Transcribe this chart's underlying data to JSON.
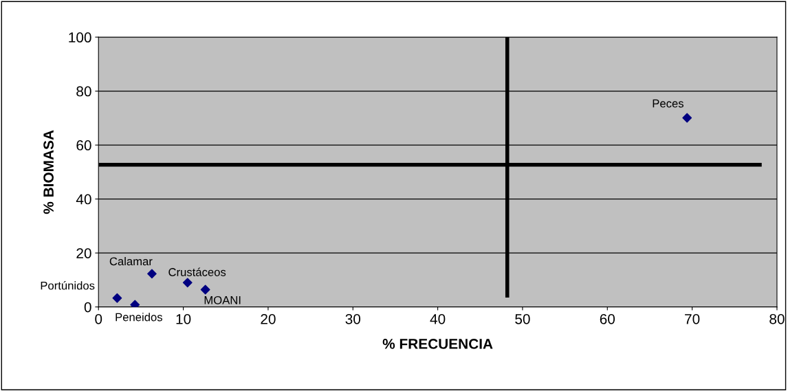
{
  "chart_data": {
    "type": "scatter",
    "xlabel": "% FRECUENCIA",
    "ylabel": "% BIOMASA",
    "x": [
      69.4,
      6.3,
      10.5,
      12.6,
      2.2,
      4.3
    ],
    "series": [
      {
        "color": "#000080",
        "values": [
          70.1,
          12.3,
          9.0,
          6.4,
          3.3,
          0.8
        ],
        "marker": "diamond"
      },
      {
        "type": "line",
        "color": "#000000",
        "x": [
          48.2,
          48.2
        ],
        "values": [
          3.5,
          100
        ]
      },
      {
        "type": "line",
        "color": "#000000",
        "x": [
          0,
          78.2
        ],
        "values": [
          52.7,
          52.7
        ]
      }
    ],
    "annotations": [
      {
        "text": "Peces",
        "x": 69.4,
        "y": 70.1
      },
      {
        "text": "Calamar",
        "x": 6.3,
        "y": 12.3
      },
      {
        "text": "Crustáceos",
        "x": 10.5,
        "y": 9.0
      },
      {
        "text": "MOANI",
        "x": 12.6,
        "y": 6.4
      },
      {
        "text": "Portúnidos",
        "x": 2.2,
        "y": 3.3
      },
      {
        "text": "Peneidos",
        "x": 4.3,
        "y": 0.8
      }
    ],
    "xlim": [
      0,
      80
    ],
    "xticks": [
      0,
      10,
      20,
      30,
      40,
      50,
      60,
      70,
      80
    ],
    "ylim": [
      0,
      100
    ],
    "yticks": [
      0,
      20,
      40,
      60,
      80,
      100
    ],
    "grid": "y",
    "legend": false
  }
}
